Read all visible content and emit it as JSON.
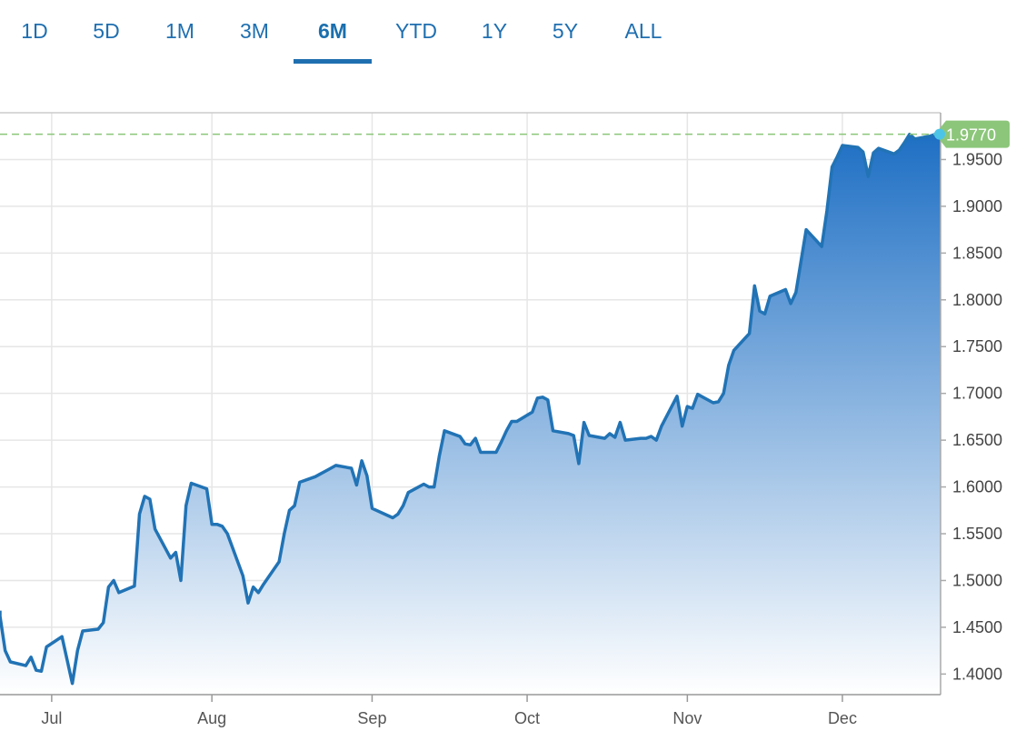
{
  "range_selector": {
    "buttons": [
      {
        "label": "1D",
        "active": false
      },
      {
        "label": "5D",
        "active": false
      },
      {
        "label": "1M",
        "active": false
      },
      {
        "label": "3M",
        "active": false
      },
      {
        "label": "6M",
        "active": true
      },
      {
        "label": "YTD",
        "active": false
      },
      {
        "label": "1Y",
        "active": false
      },
      {
        "label": "5Y",
        "active": false
      },
      {
        "label": "ALL",
        "active": false
      }
    ]
  },
  "colors": {
    "accent": "#1f6fb0",
    "line": "#2173b5",
    "area_top": "#1e6fc4",
    "area_bottom": "#ffffff",
    "last_value_badge": "#8cc67a",
    "last_value_marker": "#4cc4e8",
    "grid": "#e6e6e6"
  },
  "chart_data": {
    "type": "area",
    "x_tick_labels": [
      "Jul",
      "Aug",
      "Sep",
      "Oct",
      "Nov",
      "Dec"
    ],
    "y_tick_labels": [
      "1.4000",
      "1.4500",
      "1.5000",
      "1.5500",
      "1.6000",
      "1.6500",
      "1.7000",
      "1.7500",
      "1.8000",
      "1.8500",
      "1.9000",
      "1.9500"
    ],
    "ylim": [
      1.378,
      2.0
    ],
    "last_value": 1.977,
    "last_value_label": "1.9770",
    "grid": true,
    "x_start": "2023-06-21",
    "x_end": "2023-12-20",
    "dates": [
      "2023-06-21",
      "2023-06-22",
      "2023-06-23",
      "2023-06-26",
      "2023-06-27",
      "2023-06-28",
      "2023-06-29",
      "2023-06-30",
      "2023-07-03",
      "2023-07-05",
      "2023-07-06",
      "2023-07-07",
      "2023-07-10",
      "2023-07-11",
      "2023-07-12",
      "2023-07-13",
      "2023-07-14",
      "2023-07-17",
      "2023-07-18",
      "2023-07-19",
      "2023-07-20",
      "2023-07-21",
      "2023-07-24",
      "2023-07-25",
      "2023-07-26",
      "2023-07-27",
      "2023-07-28",
      "2023-07-31",
      "2023-08-01",
      "2023-08-02",
      "2023-08-03",
      "2023-08-04",
      "2023-08-07",
      "2023-08-08",
      "2023-08-09",
      "2023-08-10",
      "2023-08-11",
      "2023-08-14",
      "2023-08-15",
      "2023-08-16",
      "2023-08-17",
      "2023-08-18",
      "2023-08-21",
      "2023-08-22",
      "2023-08-23",
      "2023-08-24",
      "2023-08-25",
      "2023-08-28",
      "2023-08-29",
      "2023-08-30",
      "2023-08-31",
      "2023-09-01",
      "2023-09-05",
      "2023-09-06",
      "2023-09-07",
      "2023-09-08",
      "2023-09-11",
      "2023-09-12",
      "2023-09-13",
      "2023-09-14",
      "2023-09-15",
      "2023-09-18",
      "2023-09-19",
      "2023-09-20",
      "2023-09-21",
      "2023-09-22",
      "2023-09-25",
      "2023-09-26",
      "2023-09-27",
      "2023-09-28",
      "2023-09-29",
      "2023-10-02",
      "2023-10-03",
      "2023-10-04",
      "2023-10-05",
      "2023-10-06",
      "2023-10-09",
      "2023-10-10",
      "2023-10-11",
      "2023-10-12",
      "2023-10-13",
      "2023-10-16",
      "2023-10-17",
      "2023-10-18",
      "2023-10-19",
      "2023-10-20",
      "2023-10-23",
      "2023-10-24",
      "2023-10-25",
      "2023-10-26",
      "2023-10-27",
      "2023-10-30",
      "2023-10-31",
      "2023-11-01",
      "2023-11-02",
      "2023-11-03",
      "2023-11-06",
      "2023-11-07",
      "2023-11-08",
      "2023-11-09",
      "2023-11-10",
      "2023-11-13",
      "2023-11-14",
      "2023-11-15",
      "2023-11-16",
      "2023-11-17",
      "2023-11-20",
      "2023-11-21",
      "2023-11-22",
      "2023-11-24",
      "2023-11-27",
      "2023-11-28",
      "2023-11-29",
      "2023-11-30",
      "2023-12-01",
      "2023-12-04",
      "2023-12-05",
      "2023-12-06",
      "2023-12-07",
      "2023-12-08",
      "2023-12-11",
      "2023-12-12",
      "2023-12-13",
      "2023-12-14",
      "2023-12-15",
      "2023-12-18",
      "2023-12-19",
      "2023-12-20"
    ],
    "values": [
      1.462,
      1.425,
      1.413,
      1.409,
      1.418,
      1.404,
      1.403,
      1.429,
      1.44,
      1.39,
      1.425,
      1.446,
      1.448,
      1.455,
      1.493,
      1.5,
      1.487,
      1.494,
      1.571,
      1.59,
      1.587,
      1.555,
      1.524,
      1.53,
      1.5,
      1.58,
      1.604,
      1.598,
      1.56,
      1.56,
      1.558,
      1.55,
      1.505,
      1.476,
      1.493,
      1.487,
      1.496,
      1.52,
      1.55,
      1.575,
      1.58,
      1.605,
      1.611,
      1.614,
      1.617,
      1.62,
      1.623,
      1.62,
      1.602,
      1.628,
      1.612,
      1.577,
      1.567,
      1.571,
      1.58,
      1.594,
      1.603,
      1.6,
      1.6,
      1.633,
      1.66,
      1.654,
      1.646,
      1.645,
      1.652,
      1.637,
      1.637,
      1.648,
      1.66,
      1.67,
      1.67,
      1.68,
      1.695,
      1.696,
      1.693,
      1.66,
      1.657,
      1.655,
      1.625,
      1.669,
      1.655,
      1.652,
      1.657,
      1.653,
      1.669,
      1.65,
      1.652,
      1.652,
      1.654,
      1.65,
      1.665,
      1.697,
      1.665,
      1.686,
      1.684,
      1.699,
      1.69,
      1.691,
      1.7,
      1.73,
      1.746,
      1.764,
      1.815,
      1.788,
      1.785,
      1.804,
      1.811,
      1.796,
      1.808,
      1.875,
      1.857,
      1.895,
      1.942,
      1.953,
      1.965,
      1.963,
      1.958,
      1.932,
      1.957,
      1.962,
      1.956,
      1.96,
      1.968,
      1.977,
      1.972,
      1.975,
      1.977,
      1.977
    ]
  }
}
